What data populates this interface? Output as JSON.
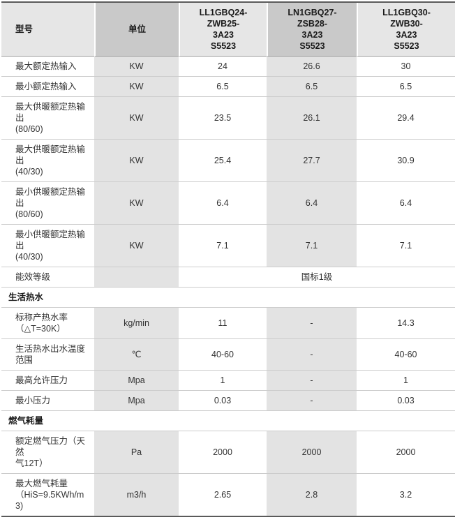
{
  "colors": {
    "header_light": "#e6e6e6",
    "header_dark": "#c9c9c9",
    "body_gray": "#e3e3e3",
    "line_strong": "#5a5a5a",
    "line_header": "#9a9a9a",
    "line_row": "#cccccc",
    "text_main": "#333333",
    "text_bold": "#1a1a1a"
  },
  "table": {
    "header": {
      "col_model": "型号",
      "col_unit": "单位",
      "models": [
        [
          "LL1GBQ24-",
          "ZWB25-",
          "3A23",
          "S5523"
        ],
        [
          "LN1GBQ27-",
          "ZSB28-",
          "3A23",
          "S5523"
        ],
        [
          "LL1GBQ30-",
          "ZWB30-",
          "3A23",
          "S5523"
        ]
      ]
    },
    "rows": [
      {
        "type": "spec",
        "label": "最大额定热输入",
        "unit": "KW",
        "values": [
          "24",
          "26.6",
          "30"
        ]
      },
      {
        "type": "spec",
        "label": "最小额定热输入",
        "unit": "KW",
        "values": [
          "6.5",
          "6.5",
          "6.5"
        ]
      },
      {
        "type": "spec",
        "label": [
          "最大供暖额定热输出",
          "(80/60)"
        ],
        "unit": "KW",
        "values": [
          "23.5",
          "26.1",
          "29.4"
        ]
      },
      {
        "type": "spec",
        "label": [
          "最大供暖额定热输出",
          "(40/30)"
        ],
        "unit": "KW",
        "values": [
          "25.4",
          "27.7",
          "30.9"
        ]
      },
      {
        "type": "spec",
        "label": [
          "最小供暖额定热输出",
          "(80/60)"
        ],
        "unit": "KW",
        "values": [
          "6.4",
          "6.4",
          "6.4"
        ]
      },
      {
        "type": "spec",
        "label": [
          "最小供暖额定热输出",
          "(40/30)"
        ],
        "unit": "KW",
        "values": [
          "7.1",
          "7.1",
          "7.1"
        ]
      },
      {
        "type": "merged",
        "label": "能效等级",
        "unit": "",
        "merged_value": "国标1级"
      },
      {
        "type": "section",
        "label": "生活热水"
      },
      {
        "type": "spec",
        "label": [
          "标称产热水率",
          "（△T=30K）"
        ],
        "unit": "kg/min",
        "values": [
          "11",
          "-",
          "14.3"
        ]
      },
      {
        "type": "spec",
        "label": "生活热水出水温度范围",
        "unit": "℃",
        "values": [
          "40-60",
          "-",
          "40-60"
        ]
      },
      {
        "type": "spec",
        "label": "最高允许压力",
        "unit": "Mpa",
        "values": [
          "1",
          "-",
          "1"
        ]
      },
      {
        "type": "spec",
        "label": "最小压力",
        "unit": "Mpa",
        "values": [
          "0.03",
          "-",
          "0.03"
        ]
      },
      {
        "type": "section",
        "label": "燃气耗量"
      },
      {
        "type": "spec",
        "label": [
          "额定燃气压力（天然",
          "气12T）"
        ],
        "unit": "Pa",
        "values": [
          "2000",
          "2000",
          "2000"
        ]
      },
      {
        "type": "spec",
        "label": [
          "最大燃气耗量",
          "（HiS=9.5KWh/m3)"
        ],
        "unit": "m3/h",
        "values": [
          "2.65",
          "2.8",
          "3.2"
        ]
      }
    ]
  }
}
